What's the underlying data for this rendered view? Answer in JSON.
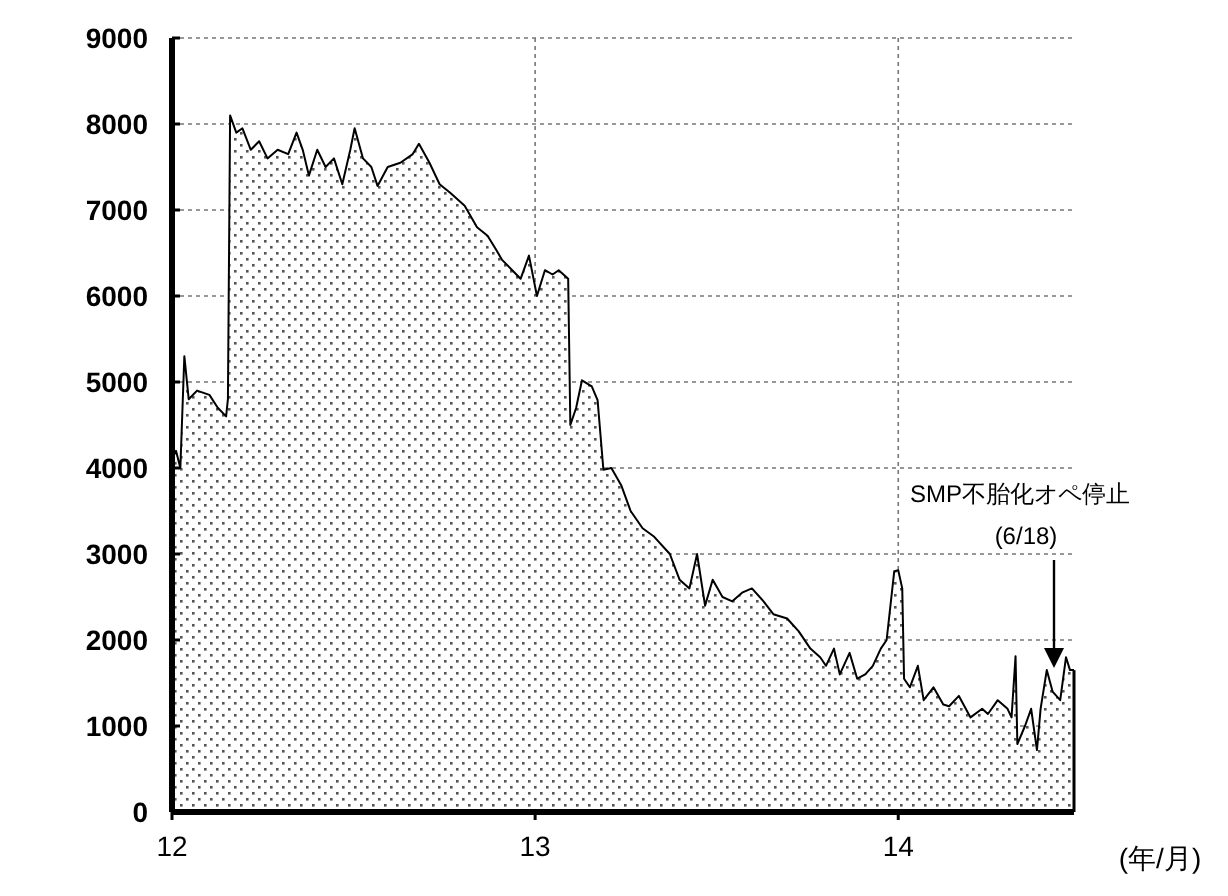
{
  "chart_data": {
    "type": "area",
    "xlabel": "(年/月)",
    "color": "#000000",
    "grid": true,
    "x": [
      2012,
      2012.011,
      2012.023,
      2012.034,
      2012.046,
      2012.069,
      2012.103,
      2012.126,
      2012.149,
      2012.154,
      2012.16,
      2012.177,
      2012.194,
      2012.217,
      2012.24,
      2012.263,
      2012.291,
      2012.32,
      2012.343,
      2012.36,
      2012.377,
      2012.4,
      2012.423,
      2012.446,
      2012.469,
      2012.491,
      2012.503,
      2012.526,
      2012.549,
      2012.566,
      2012.594,
      2012.629,
      2012.663,
      2012.68,
      2012.709,
      2012.737,
      2012.766,
      2012.806,
      2012.84,
      2012.869,
      2012.891,
      2012.909,
      2012.937,
      2012.96,
      2012.983,
      2013.005,
      2013.027,
      2013.048,
      2013.065,
      2013.091,
      2013.097,
      2013.113,
      2013.129,
      2013.156,
      2013.172,
      2013.188,
      2013.21,
      2013.237,
      2013.263,
      2013.296,
      2013.328,
      2013.371,
      2013.398,
      2013.425,
      2013.446,
      2013.468,
      2013.489,
      2013.516,
      2013.543,
      2013.57,
      2013.597,
      2013.629,
      2013.656,
      2013.694,
      2013.726,
      2013.758,
      2013.785,
      2013.801,
      2013.823,
      2013.839,
      2013.866,
      2013.887,
      2013.909,
      2013.93,
      2013.952,
      2013.968,
      2013.989,
      2014,
      2014.011,
      2014.016,
      2014.032,
      2014.054,
      2014.07,
      2014.097,
      2014.124,
      2014.14,
      2014.167,
      2014.199,
      2014.231,
      2014.247,
      2014.274,
      2014.301,
      2014.312,
      2014.323,
      2014.328,
      2014.349,
      2014.366,
      2014.382,
      2014.392,
      2014.409,
      2014.425,
      2014.446,
      2014.462,
      2014.473,
      2014.484
    ],
    "values": [
      4100,
      4200,
      4000,
      5300,
      4800,
      4900,
      4850,
      4700,
      4600,
      4800,
      8100,
      7900,
      7950,
      7700,
      7800,
      7600,
      7700,
      7650,
      7900,
      7700,
      7400,
      7700,
      7500,
      7600,
      7300,
      7700,
      7950,
      7600,
      7500,
      7280,
      7500,
      7550,
      7650,
      7770,
      7550,
      7300,
      7200,
      7050,
      6800,
      6700,
      6550,
      6420,
      6300,
      6200,
      6470,
      6000,
      6300,
      6250,
      6300,
      6200,
      4500,
      4700,
      5020,
      4950,
      4790,
      3980,
      4000,
      3800,
      3500,
      3300,
      3200,
      3000,
      2700,
      2600,
      3000,
      2400,
      2700,
      2500,
      2450,
      2550,
      2600,
      2450,
      2300,
      2250,
      2100,
      1900,
      1800,
      1700,
      1900,
      1600,
      1850,
      1550,
      1600,
      1700,
      1900,
      2000,
      2800,
      2810,
      2600,
      1550,
      1450,
      1700,
      1300,
      1450,
      1250,
      1230,
      1350,
      1100,
      1200,
      1140,
      1300,
      1200,
      1100,
      1810,
      790,
      1000,
      1200,
      720,
      1200,
      1650,
      1400,
      1300,
      1800,
      1650,
      1650
    ],
    "xlim": [
      2012,
      2014.484
    ],
    "xticks": [
      {
        "value": 2012,
        "label": "12"
      },
      {
        "value": 2013,
        "label": "13"
      },
      {
        "value": 2014,
        "label": "14"
      }
    ],
    "ylim": [
      0,
      9000
    ],
    "yticks": [
      0,
      1000,
      2000,
      3000,
      4000,
      5000,
      6000,
      7000,
      8000,
      9000
    ],
    "annotations": [
      "SMP不胎化オペ停止",
      "(6/18)"
    ]
  }
}
